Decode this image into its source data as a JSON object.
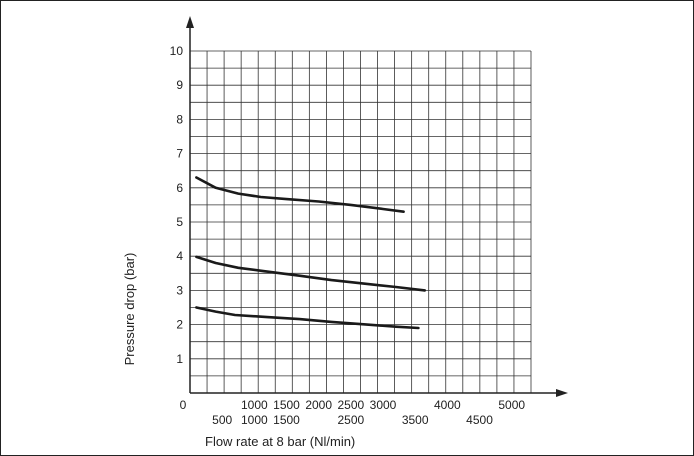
{
  "chart_data": {
    "type": "line",
    "xlabel": "Flow rate at 8 bar (Nl/min)",
    "ylabel": "Pressure drop (bar)",
    "xlim": [
      0,
      5300
    ],
    "ylim": [
      0,
      10
    ],
    "x_ticks_top": [
      "1000",
      "1500",
      "2000",
      "2500",
      "3000",
      "4000",
      "5000"
    ],
    "x_ticks_top_values": [
      1000,
      1500,
      2000,
      2500,
      3000,
      4000,
      5000
    ],
    "x_ticks_bottom": [
      "500",
      "1000",
      "1500",
      "2500",
      "3500",
      "4500"
    ],
    "x_ticks_bottom_values": [
      500,
      1000,
      1500,
      2500,
      3500,
      4500
    ],
    "origin_label": "0",
    "y_ticks": [
      "1",
      "2",
      "3",
      "4",
      "5",
      "6",
      "7",
      "8",
      "9",
      "10"
    ],
    "y_tick_values": [
      1,
      2,
      3,
      4,
      5,
      6,
      7,
      8,
      9,
      10
    ],
    "grid": true,
    "series": [
      {
        "x": [
          100,
          400,
          750,
          1100,
          1500,
          2000,
          2500,
          3000,
          3320
        ],
        "y": [
          6.3,
          6.0,
          5.83,
          5.73,
          5.67,
          5.6,
          5.5,
          5.38,
          5.3
        ]
      },
      {
        "x": [
          100,
          400,
          750,
          1200,
          1700,
          2200,
          2700,
          3200,
          3650
        ],
        "y": [
          3.98,
          3.8,
          3.66,
          3.55,
          3.43,
          3.3,
          3.2,
          3.1,
          3.0
        ]
      },
      {
        "x": [
          100,
          400,
          700,
          1200,
          1700,
          2200,
          2700,
          3200,
          3550
        ],
        "y": [
          2.5,
          2.38,
          2.28,
          2.22,
          2.16,
          2.08,
          2.01,
          1.94,
          1.9
        ]
      }
    ]
  }
}
